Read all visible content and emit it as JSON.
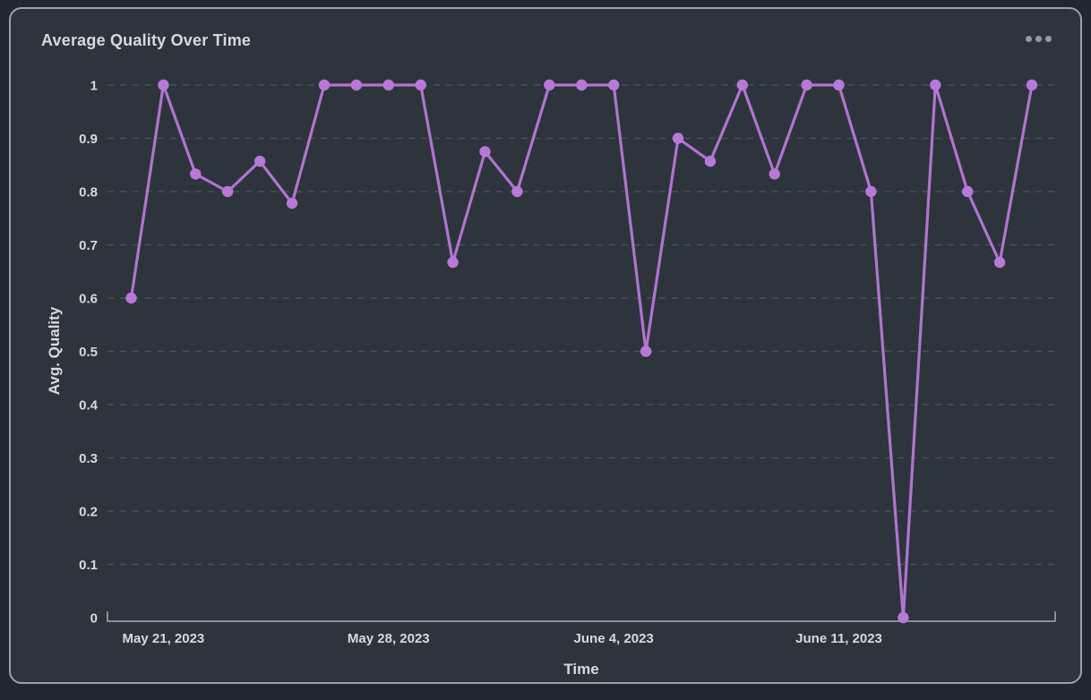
{
  "panel": {
    "title": "Average Quality Over Time",
    "menu_icon": "ellipsis-icon"
  },
  "colors": {
    "page_background": "#21272e",
    "card_background": "#2d343c",
    "card_border": "#99a2aa",
    "line": "#b877d9",
    "marker": "#b877d9",
    "grid": "#4c535b",
    "axis_line": "#a5adb5",
    "text": "#d8d9da",
    "menu_dots": "#949ba3"
  },
  "chart_data": {
    "type": "line",
    "title": "Average Quality Over Time",
    "xlabel": "Time",
    "ylabel": "Avg. Quality",
    "ylim": [
      0,
      1
    ],
    "y_tick_step": 0.1,
    "grid": "horizontal dashed",
    "legend": "none",
    "x": [
      "2023-05-20",
      "2023-05-21",
      "2023-05-22",
      "2023-05-23",
      "2023-05-24",
      "2023-05-25",
      "2023-05-26",
      "2023-05-27",
      "2023-05-28",
      "2023-05-29",
      "2023-05-30",
      "2023-05-31",
      "2023-06-01",
      "2023-06-02",
      "2023-06-03",
      "2023-06-04",
      "2023-06-05",
      "2023-06-06",
      "2023-06-07",
      "2023-06-08",
      "2023-06-09",
      "2023-06-10",
      "2023-06-11",
      "2023-06-12",
      "2023-06-13",
      "2023-06-14",
      "2023-06-15",
      "2023-06-16",
      "2023-06-17"
    ],
    "values": [
      0.6,
      1,
      0.833,
      0.8,
      0.857,
      0.778,
      1,
      1,
      1,
      1,
      0.667,
      0.875,
      0.8,
      1,
      1,
      1,
      0.5,
      0.9,
      0.857,
      1,
      0.833,
      1,
      1,
      0.8,
      0,
      1,
      0.8,
      0.667,
      1
    ],
    "x_tick_labels": [
      "May 21, 2023",
      "May 28, 2023",
      "June 4, 2023",
      "June 11, 2023"
    ],
    "x_tick_indices": [
      1,
      8,
      15,
      22
    ]
  }
}
